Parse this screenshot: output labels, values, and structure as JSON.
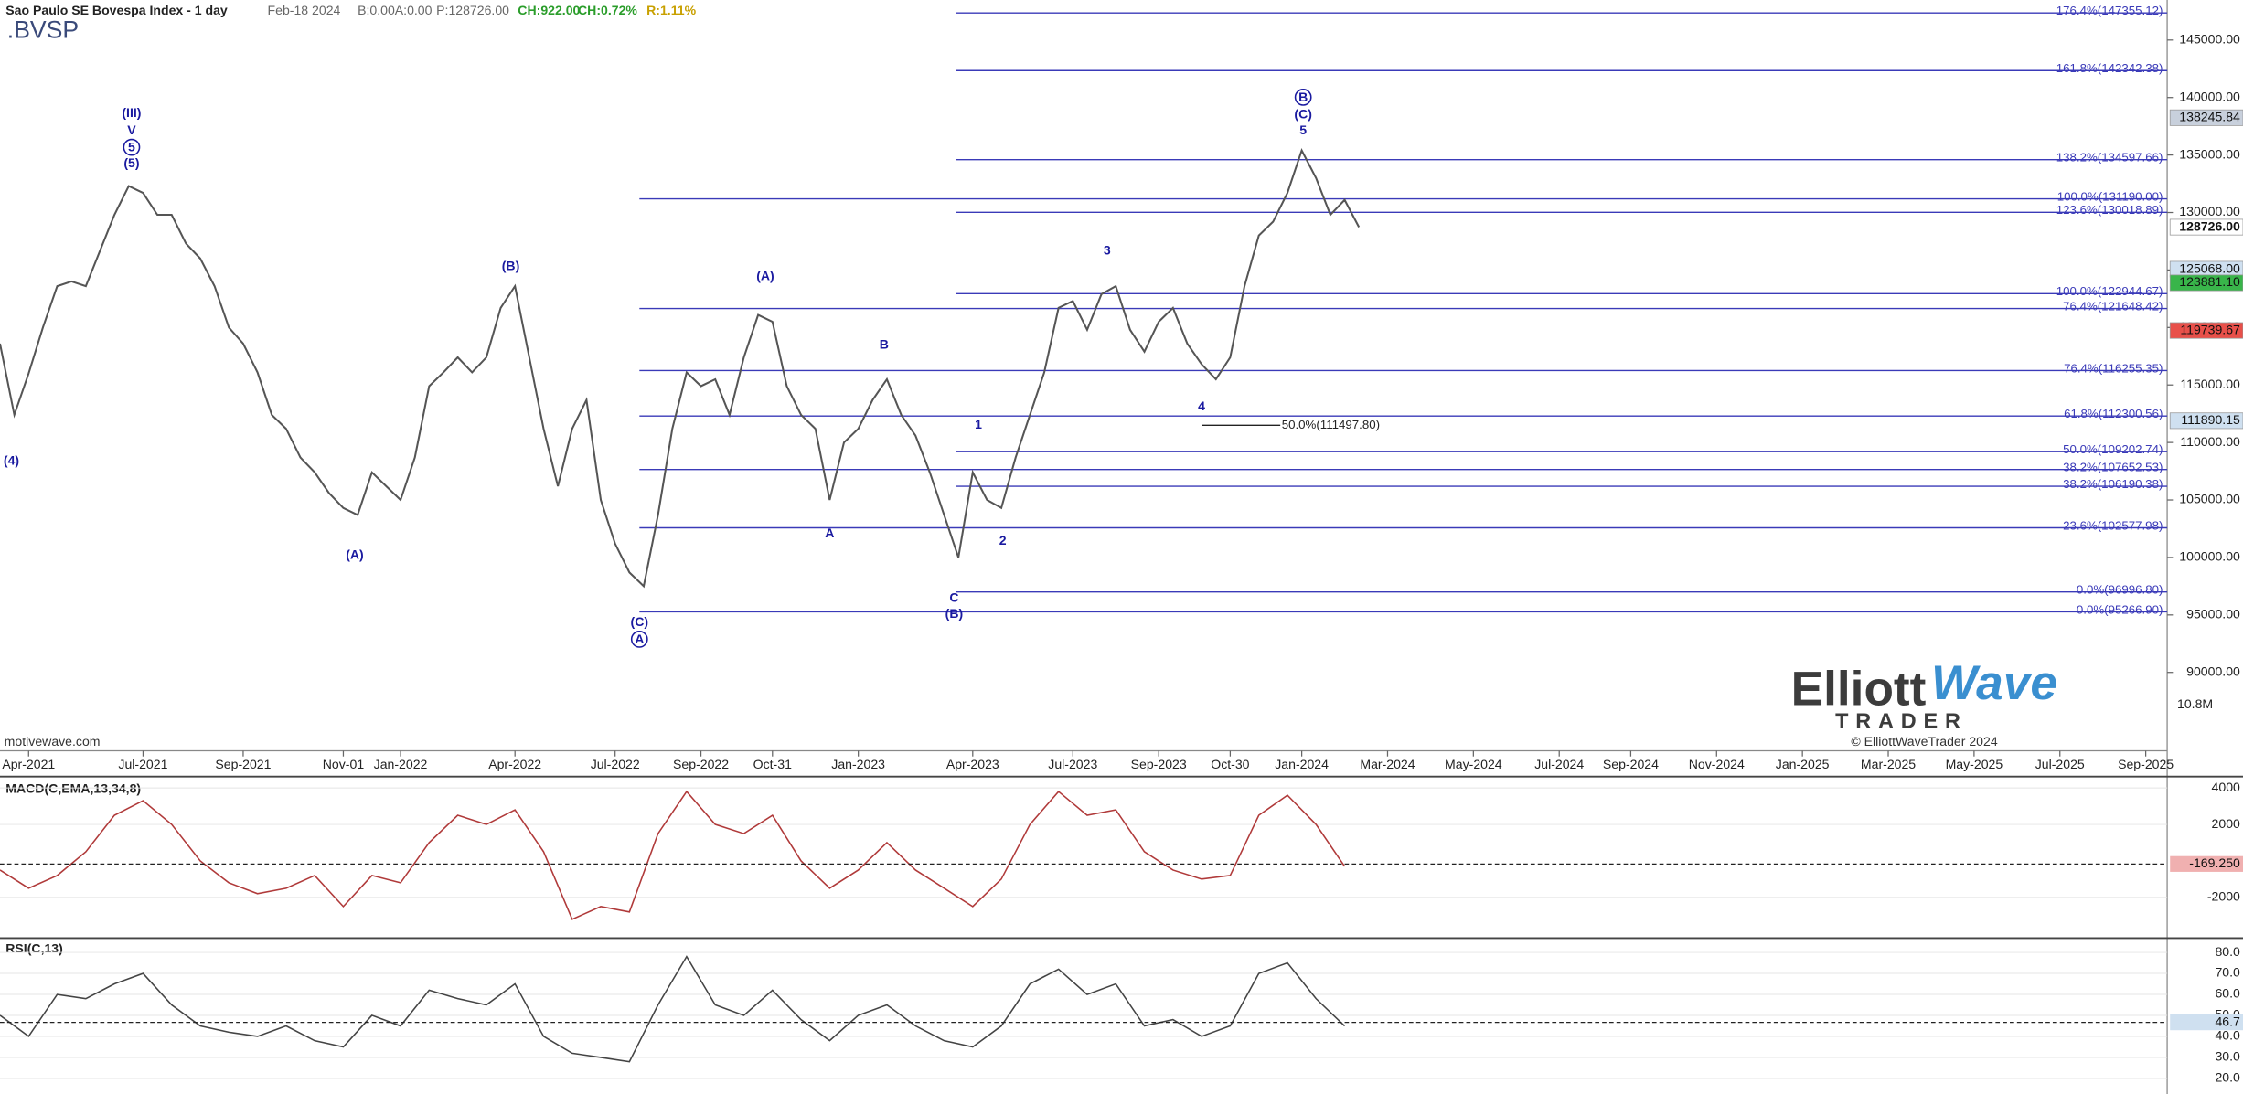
{
  "header": {
    "title": "Sao Paulo SE Bovespa Index - 1 day",
    "date": "Feb-18 2024",
    "fields": [
      "B:0.00",
      "A:0.00",
      "P:128726.00",
      "CH:922.00",
      "CH:0.72%",
      "R:1.11%"
    ],
    "symbol": ".BVSP",
    "watermark": "motivewave.com",
    "logo": {
      "word1": "Elliott",
      "word2": "Wave",
      "word3": "TRADER",
      "copyright": "© ElliottWaveTrader 2024"
    }
  },
  "chart_data": [
    {
      "type": "line",
      "color": "#555555",
      "categories": [
        null,
        null,
        "Apr-2021",
        null,
        null,
        null,
        null,
        null,
        null,
        null,
        "Jul-2021",
        null,
        null,
        null,
        null,
        null,
        null,
        "Sep-2021",
        null,
        null,
        null,
        null,
        null,
        null,
        "Nov-01",
        null,
        null,
        null,
        "Jan-2022",
        null,
        null,
        null,
        null,
        null,
        null,
        null,
        "Apr-2022",
        null,
        null,
        null,
        null,
        null,
        null,
        "Jul-2022",
        null,
        null,
        null,
        null,
        null,
        "Sep-2022",
        null,
        null,
        null,
        null,
        "Oct-31",
        null,
        null,
        null,
        null,
        null,
        "Jan-2023",
        null,
        null,
        null,
        null,
        null,
        null,
        null,
        "Apr-2023",
        null,
        null,
        null,
        null,
        null,
        null,
        "Jul-2023",
        null,
        null,
        null,
        null,
        null,
        "Sep-2023",
        null,
        null,
        null,
        null,
        "Oct-30",
        null,
        null,
        null,
        null,
        "Jan-2024",
        null,
        null,
        null,
        null,
        null,
        "Mar-2024",
        null,
        null,
        null,
        null,
        null,
        "May-2024",
        null,
        null,
        null,
        null,
        null,
        "Jul-2024",
        null,
        null,
        null,
        null,
        "Sep-2024",
        null,
        null,
        null,
        null,
        null,
        "Nov-2024",
        null,
        null,
        null,
        null,
        null,
        "Jan-2025",
        null,
        null,
        null,
        null,
        null,
        "Mar-2025",
        null,
        null,
        null,
        null,
        null,
        "May-2025",
        null,
        null,
        null,
        null,
        null,
        "Jul-2025",
        null,
        null,
        null,
        null,
        null,
        "Sep-2025"
      ],
      "values": [
        118600,
        112400,
        116000,
        120000,
        123600,
        124000,
        123600,
        126700,
        129800,
        132300,
        131700,
        129800,
        129800,
        127300,
        126000,
        123600,
        120000,
        118600,
        116100,
        112400,
        111200,
        108700,
        107400,
        105600,
        104300,
        103700,
        107400,
        106200,
        105000,
        108700,
        114900,
        116100,
        117400,
        116100,
        117400,
        121700,
        123600,
        117400,
        111200,
        106200,
        111200,
        113700,
        105000,
        101200,
        98700,
        97500,
        103700,
        111200,
        116100,
        114900,
        115500,
        112400,
        117400,
        121100,
        120500,
        114900,
        112400,
        111200,
        105000,
        110000,
        111200,
        113700,
        115500,
        112400,
        110600,
        107400,
        103700,
        100000,
        107400,
        105000,
        104300,
        108700,
        112400,
        116100,
        121700,
        122300,
        119800,
        122900,
        123600,
        119800,
        117900,
        120500,
        121700,
        118600,
        116800,
        115500,
        117400,
        123600,
        128000,
        129200,
        131700,
        135400,
        133000,
        129800,
        131100,
        128726,
        null,
        null,
        null,
        null,
        null,
        null,
        null,
        null,
        null,
        null,
        null,
        null,
        null,
        null,
        null,
        null,
        null,
        null,
        null,
        null,
        null,
        null,
        null,
        null,
        null,
        null,
        null,
        null,
        null,
        null,
        null,
        null,
        null,
        null,
        null,
        null,
        null,
        null,
        null,
        null,
        null,
        null,
        null,
        null,
        null,
        null,
        null,
        null,
        null,
        null,
        null,
        null,
        null,
        null,
        null
      ],
      "ylim": [
        83184,
        148483
      ],
      "yticks": [
        {
          "value": 90000,
          "label": "90000.00"
        },
        {
          "value": 95000,
          "label": "95000.00"
        },
        {
          "value": 100000,
          "label": "100000.00"
        },
        {
          "value": 105000,
          "label": "105000.00"
        },
        {
          "value": 110000,
          "label": "110000.00"
        },
        {
          "value": 115000,
          "label": "115000.00"
        },
        {
          "value": 120000,
          "label": "120000.00"
        },
        {
          "value": 125000,
          "label": "125000.00"
        },
        {
          "value": 130000,
          "label": "130000.00"
        },
        {
          "value": 135000,
          "label": "135000.00"
        },
        {
          "value": 140000,
          "label": "140000.00"
        },
        {
          "value": 145000,
          "label": "145000.00"
        }
      ],
      "fib_color": "#3a3ab8",
      "fib_levels": [
        {
          "value": 147355.12,
          "label": "176.4%(147355.12)"
        },
        {
          "value": 142342.38,
          "label": "161.8%(142342.38)"
        },
        {
          "value": 134597.66,
          "label": "138.2%(134597.66)"
        },
        {
          "value": 131190.0,
          "label": "100.0%(131190.00)"
        },
        {
          "value": 130018.89,
          "label": "123.6%(130018.89)"
        },
        {
          "value": 122944.67,
          "label": "100.0%(122944.67)"
        },
        {
          "value": 121648.42,
          "label": "76.4%(121648.42)"
        },
        {
          "value": 116255.35,
          "label": "76.4%(116255.35)"
        },
        {
          "value": 112300.56,
          "label": "61.8%(112300.56)"
        },
        {
          "value": 109202.74,
          "label": "50.0%(109202.74)"
        },
        {
          "value": 107652.53,
          "label": "38.2%(107652.53)"
        },
        {
          "value": 106190.38,
          "label": "38.2%(106190.38)"
        },
        {
          "value": 102577.98,
          "label": "23.6%(102577.98)"
        },
        {
          "value": 96996.8,
          "label": "0.0%(96996.80)"
        },
        {
          "value": 95266.9,
          "label": "0.0%(95266.90)"
        }
      ],
      "extra_level": {
        "value": 111497.8,
        "label": "50.0%(111497.80)"
      },
      "badges": [
        {
          "value": 138245.84,
          "label": "138245.84",
          "color": "#c8d0dc"
        },
        {
          "value": 128726,
          "label": "128726.00",
          "color": "#ffffff"
        },
        {
          "value": 125068,
          "label": "125068.00",
          "color": "#cfe0f0"
        },
        {
          "value": 123881.1,
          "label": "123881.10",
          "color": "#39b54a"
        },
        {
          "value": 119739.67,
          "label": "119739.67",
          "color": "#e8504a"
        },
        {
          "value": 111890.15,
          "label": "111890.15",
          "color": "#cfe0f0"
        }
      ],
      "volume_label": "10.8M",
      "wave_color": "#1a1aa0",
      "wave_labels": [
        {
          "text": "(III)",
          "circled": false
        },
        {
          "text": "V",
          "circled": false
        },
        {
          "text": "5",
          "circled": true
        },
        {
          "text": "(5)",
          "circled": false
        },
        {
          "text": "(4)",
          "circled": false
        },
        {
          "text": "(A)",
          "circled": false
        },
        {
          "text": "(B)",
          "circled": false
        },
        {
          "text": "(C)",
          "circled": false
        },
        {
          "text": "A",
          "circled": true
        },
        {
          "text": "(A)",
          "circled": false
        },
        {
          "text": "B",
          "circled": false
        },
        {
          "text": "A",
          "circled": false
        },
        {
          "text": "C",
          "circled": false
        },
        {
          "text": "(B)",
          "circled": false
        },
        {
          "text": "1",
          "circled": false
        },
        {
          "text": "2",
          "circled": false
        },
        {
          "text": "3",
          "circled": false
        },
        {
          "text": "4",
          "circled": false
        },
        {
          "text": "B",
          "circled": true
        },
        {
          "text": "(C)",
          "circled": false
        },
        {
          "text": "5",
          "circled": false
        }
      ]
    },
    {
      "type": "line",
      "title": "MACD(C,EMA,13,34,8)",
      "color": "#b03a3a",
      "values": [
        -500,
        -1500,
        -800,
        500,
        2500,
        3300,
        2000,
        0,
        -1200,
        -1800,
        -1500,
        -800,
        -2500,
        -800,
        -1200,
        1000,
        2500,
        2000,
        2800,
        500,
        -3200,
        -2500,
        -2800,
        1500,
        3800,
        2000,
        1500,
        2500,
        0,
        -1500,
        -500,
        1000,
        -500,
        -1500,
        -2500,
        -1000,
        2000,
        3800,
        2500,
        2800,
        500,
        -500,
        -1000,
        -800,
        2500,
        3600,
        2000,
        -300
      ],
      "ylim": [
        -4157,
        4470
      ],
      "yticks": [
        4000,
        2000,
        -2000
      ],
      "current": {
        "value": -169.25,
        "label": "-169.250"
      }
    },
    {
      "type": "line",
      "title": "RSI(C,13)",
      "color": "#444444",
      "values": [
        50,
        40,
        60,
        58,
        65,
        70,
        55,
        45,
        42,
        40,
        45,
        38,
        35,
        50,
        45,
        62,
        58,
        55,
        65,
        40,
        32,
        30,
        28,
        55,
        78,
        55,
        50,
        62,
        48,
        38,
        50,
        55,
        45,
        38,
        35,
        45,
        65,
        72,
        60,
        65,
        45,
        48,
        40,
        45,
        70,
        75,
        58,
        45
      ],
      "ylim": [
        12.6,
        86.1
      ],
      "yticks": [
        {
          "value": 80,
          "label": "80.0"
        },
        {
          "value": 70,
          "label": "70.0"
        },
        {
          "value": 60,
          "label": "60.0"
        },
        {
          "value": 50,
          "label": "50.0"
        },
        {
          "value": 40,
          "label": "40.0"
        },
        {
          "value": 30,
          "label": "30.0"
        },
        {
          "value": 20,
          "label": "20.0"
        }
      ],
      "current": 46.7
    }
  ]
}
